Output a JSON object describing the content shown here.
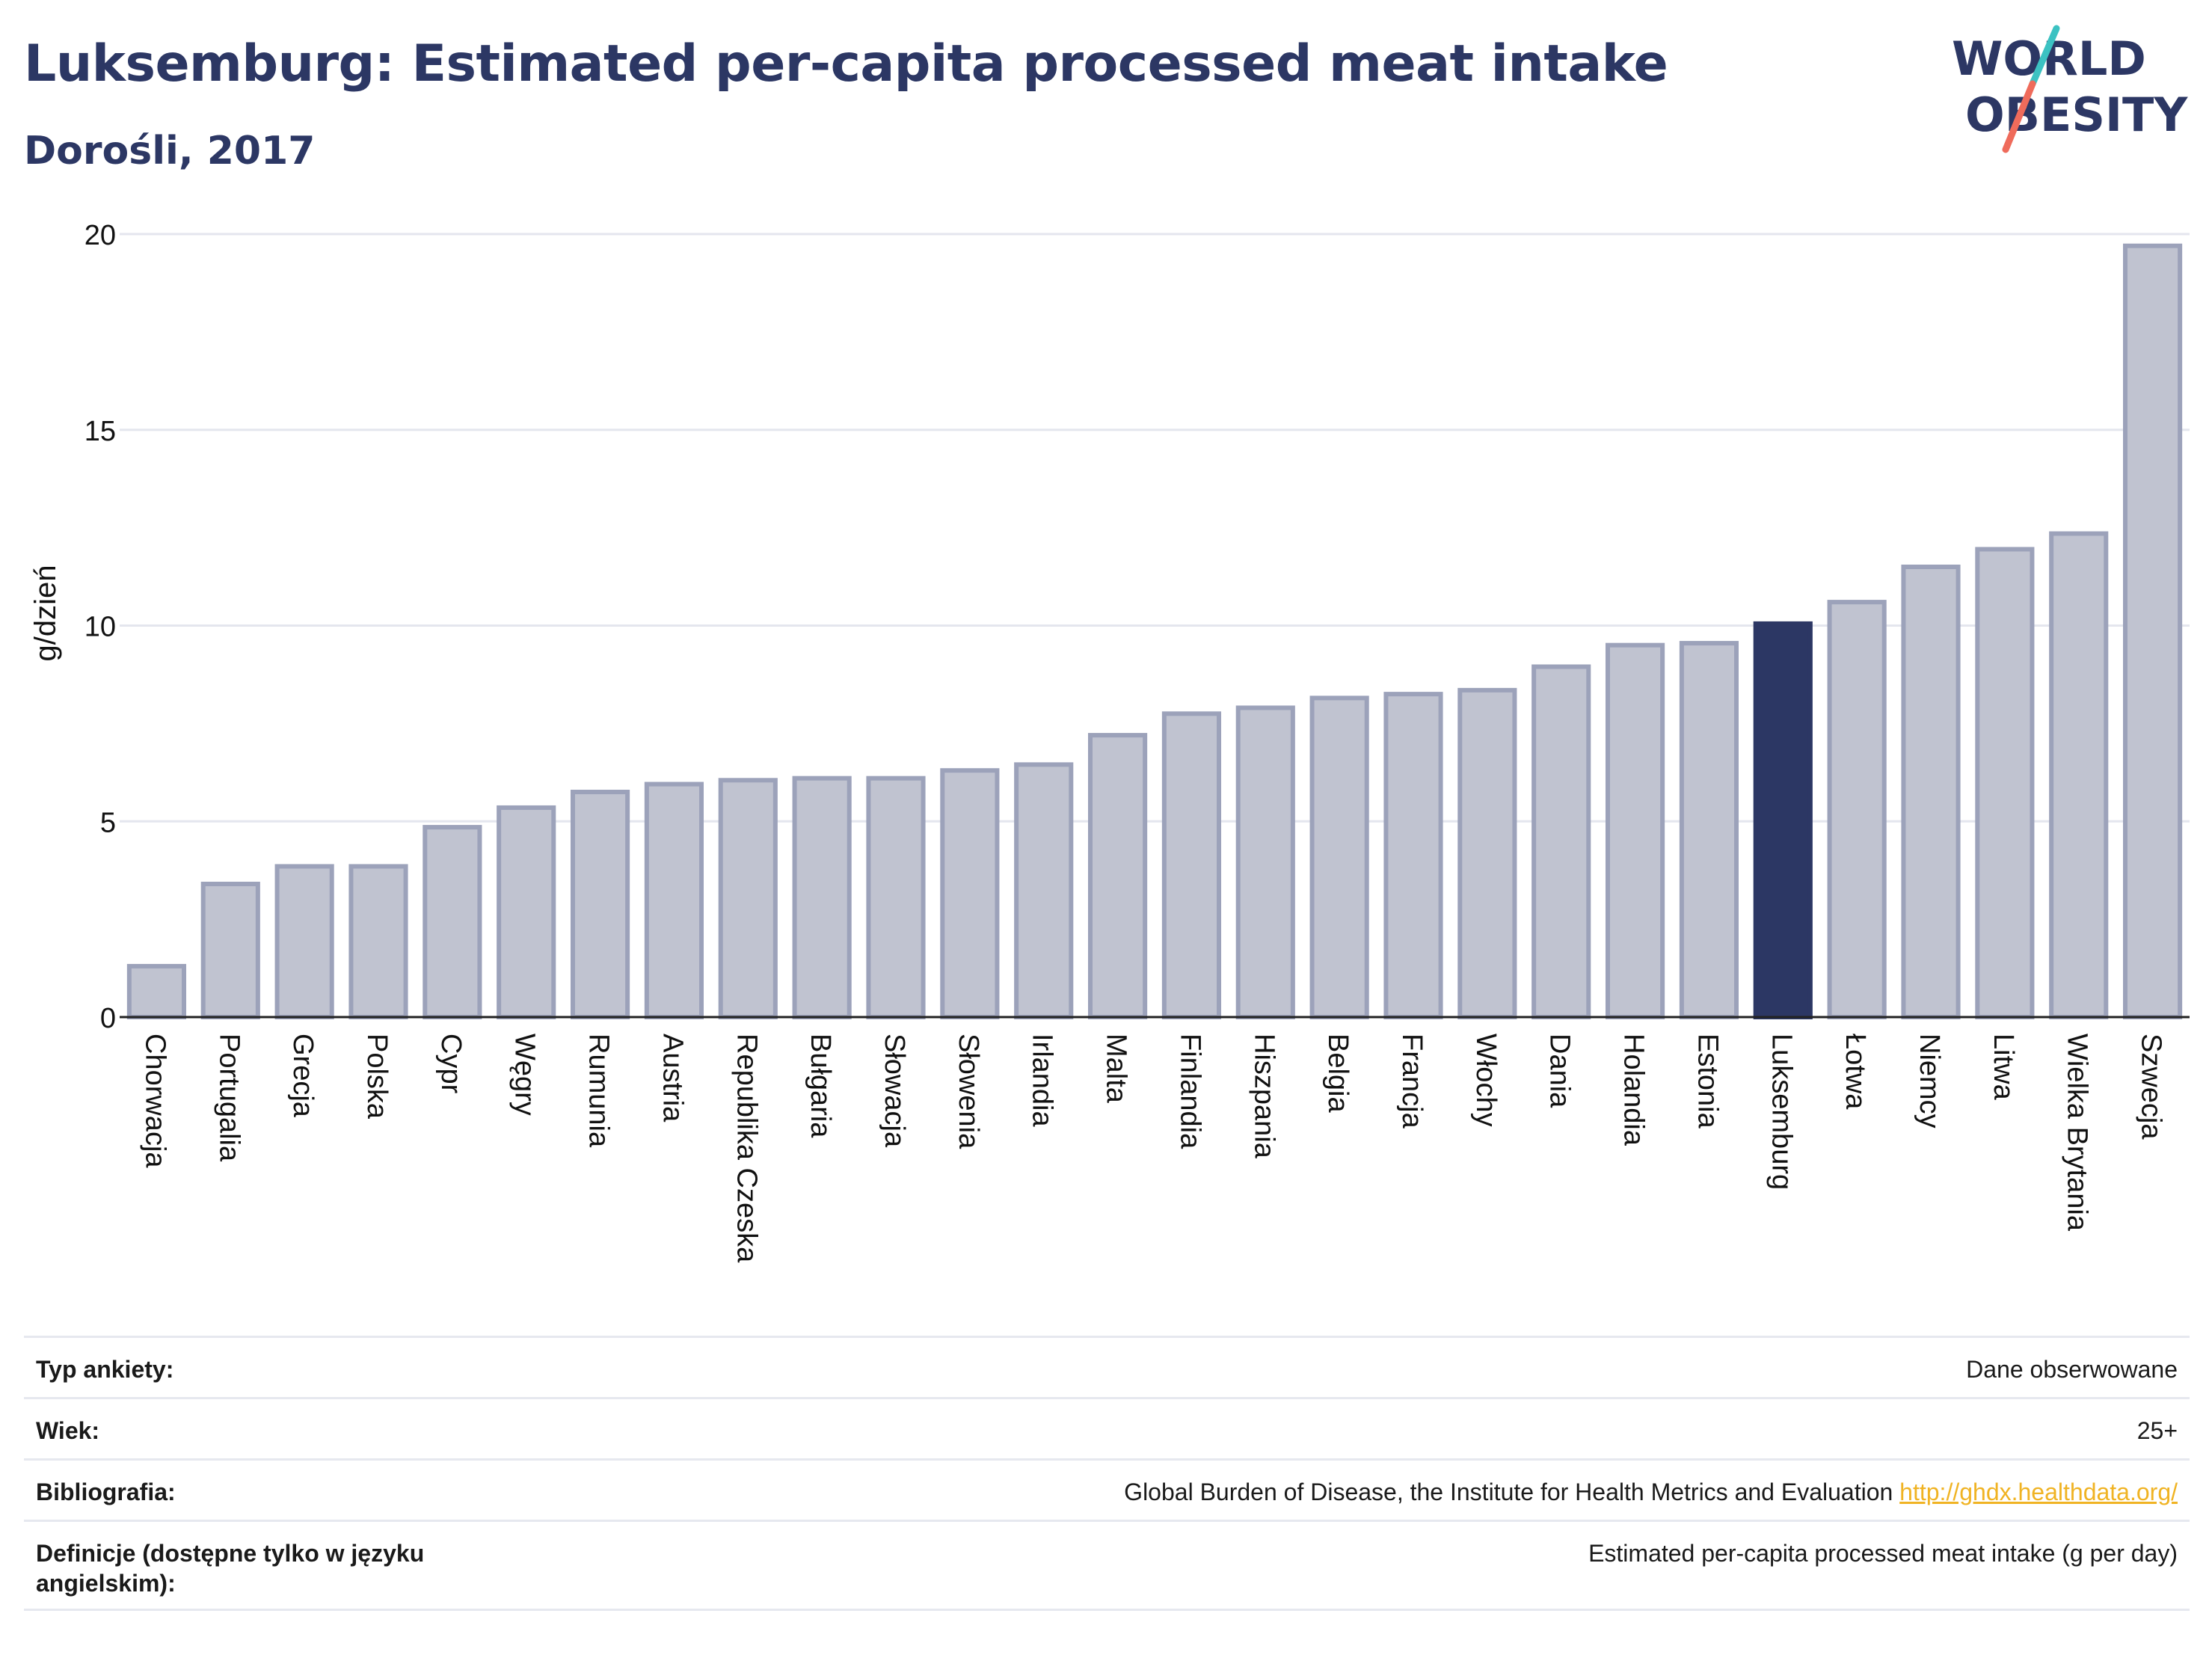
{
  "header": {
    "title": "Luksemburg: Estimated per-capita processed meat intake",
    "subtitle": "Dorośli, 2017"
  },
  "logo": {
    "line1": "WORLD",
    "line2": "OBESITY",
    "colors": {
      "text": "#2c3764",
      "slash_top": "#3cc2c2",
      "slash_bottom": "#ef6b5b"
    }
  },
  "colors": {
    "bar_default": "#c0c3d0",
    "bar_outline": "#9ca2ba",
    "bar_highlight": "#2c3764",
    "grid": "#e4e6ee",
    "axis": "#222222"
  },
  "chart_data": {
    "type": "bar",
    "ylabel": "g/dzień",
    "ylim": [
      0,
      20
    ],
    "yticks": [
      0,
      5,
      10,
      15,
      20
    ],
    "grid": true,
    "highlight": "Luksemburg",
    "categories": [
      "Chorwacja",
      "Portugalia",
      "Grecja",
      "Polska",
      "Cypr",
      "Węgry",
      "Rumunia",
      "Austria",
      "Republika Czeska",
      "Bułgaria",
      "Słowacja",
      "Słowenia",
      "Irlandia",
      "Malta",
      "Finlandia",
      "Hiszpania",
      "Belgia",
      "Francja",
      "Włochy",
      "Dania",
      "Holandia",
      "Estonia",
      "Luksemburg",
      "Łotwa",
      "Niemcy",
      "Litwa",
      "Wielka Brytania",
      "Szwecja"
    ],
    "values": [
      1.3,
      3.4,
      3.85,
      3.85,
      4.85,
      5.35,
      5.75,
      5.95,
      6.05,
      6.1,
      6.1,
      6.3,
      6.45,
      7.2,
      7.75,
      7.9,
      8.15,
      8.25,
      8.35,
      8.95,
      9.5,
      9.55,
      10.05,
      10.6,
      11.5,
      11.95,
      12.35,
      19.7
    ]
  },
  "meta": [
    {
      "label": "Typ ankiety:",
      "value": "Dane obserwowane"
    },
    {
      "label": "Wiek:",
      "value": "25+"
    },
    {
      "label": "Bibliografia:",
      "value": "Global Burden of Disease, the Institute for Health Metrics and Evaluation",
      "link": "http://ghdx.healthdata.org/"
    },
    {
      "label": "Definicje (dostępne tylko w języku angielskim):",
      "value": "Estimated per-capita processed meat intake (g per day)"
    }
  ]
}
